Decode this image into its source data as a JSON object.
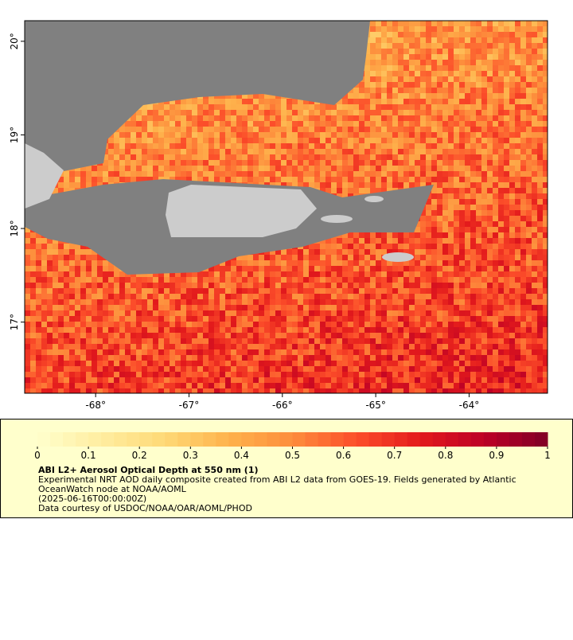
{
  "map": {
    "xlim": [
      -68.76,
      -63.16
    ],
    "ylim": [
      16.24,
      20.22
    ],
    "lon_ticks": [
      {
        "value": -68,
        "label": "-68°"
      },
      {
        "value": -67,
        "label": "-67°"
      },
      {
        "value": -66,
        "label": "-66°"
      },
      {
        "value": -65,
        "label": "-65°"
      },
      {
        "value": -64,
        "label": "-64°"
      }
    ],
    "lat_ticks": [
      {
        "value": 17,
        "label": "17°"
      },
      {
        "value": 18,
        "label": "18°"
      },
      {
        "value": 19,
        "label": "19°"
      },
      {
        "value": 20,
        "label": "20°"
      }
    ]
  },
  "colorbar": {
    "lim": [
      0,
      1
    ],
    "ticks": [
      0,
      0.1,
      0.2,
      0.3,
      0.4,
      0.5,
      0.6,
      0.7,
      0.8,
      0.9,
      1
    ],
    "colors": [
      "#ffffcc",
      "#ffeda0",
      "#fed976",
      "#feb24c",
      "#fd8d3c",
      "#fc4e2a",
      "#e31a1c",
      "#bd0026",
      "#800026"
    ]
  },
  "legend": {
    "title": "ABI L2+ Aerosol Optical Depth at 550 nm (1)",
    "lines": [
      "Experimental NRT AOD daily composite created from ABI L2 data from GOES-19. Fields generated by Atlantic",
      "OceanWatch node at NOAA/AOML",
      "(2025-06-16T00:00:00Z)",
      "Data courtesy of USDOC/NOAA/OAR/AOML/PHOD"
    ]
  }
}
